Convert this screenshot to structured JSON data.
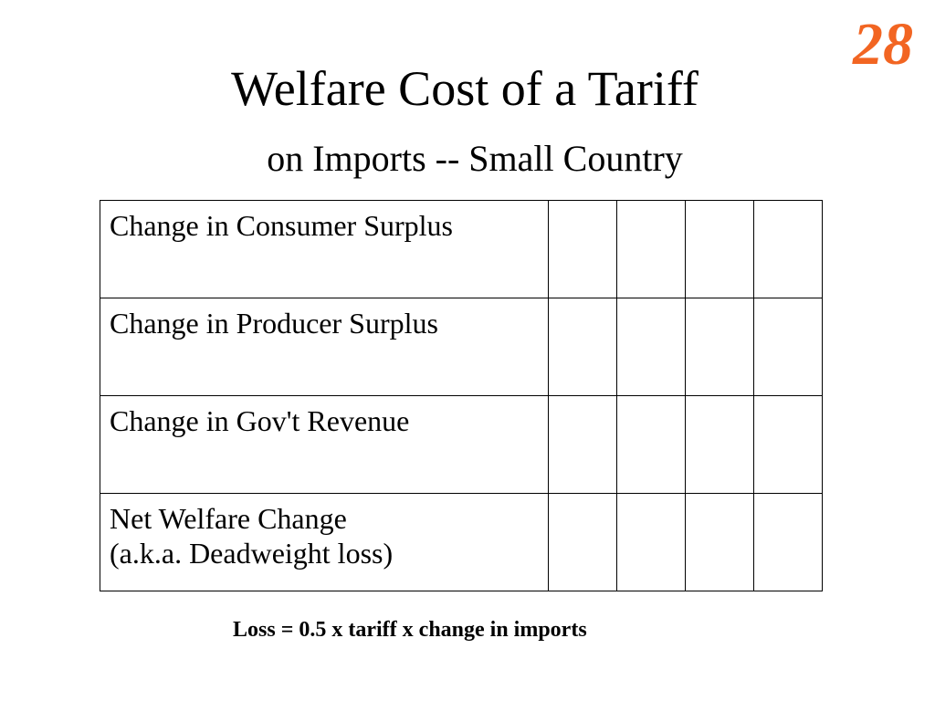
{
  "slide_number": "28",
  "colors": {
    "slide_number": "#f26522",
    "text": "#000000",
    "background": "#ffffff"
  },
  "title": {
    "main": "Welfare Cost of a Tariff",
    "sub": "on Imports -- Small Country"
  },
  "table": {
    "rows": [
      {
        "label_lines": [
          "Change in Consumer Surplus"
        ],
        "cells": [
          "",
          "",
          "",
          ""
        ]
      },
      {
        "label_lines": [
          "Change in Producer Surplus"
        ],
        "cells": [
          "",
          "",
          "",
          ""
        ]
      },
      {
        "label_lines": [
          "Change in Gov't Revenue"
        ],
        "cells": [
          "",
          "",
          "",
          ""
        ]
      },
      {
        "label_lines": [
          "Net Welfare Change",
          "(a.k.a. Deadweight loss)"
        ],
        "cells": [
          "",
          "",
          "",
          ""
        ]
      }
    ]
  },
  "footnote": "Loss = 0.5 x tariff x change in imports"
}
